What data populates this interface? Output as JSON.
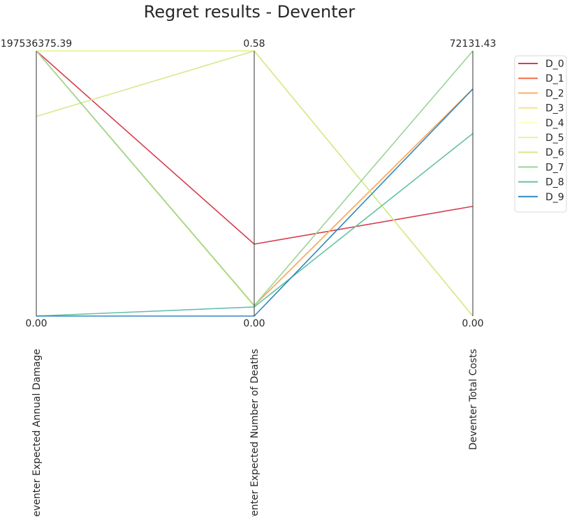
{
  "chart_data": {
    "type": "parallel-coordinates",
    "title": "Regret results - Deventer",
    "axes": [
      {
        "name": "Deventer Expected Annual Damage",
        "min": 0,
        "max": 197536375.39,
        "min_label": "0.00",
        "max_label": "197536375.39"
      },
      {
        "name": "Deventer Expected Number of Deaths",
        "min": 0,
        "max": 0.58,
        "min_label": "0.00",
        "max_label": "0.58"
      },
      {
        "name": "Deventer Total Costs",
        "min": 0,
        "max": 72131.43,
        "min_label": "0.00",
        "max_label": "72131.43"
      }
    ],
    "series": [
      {
        "name": "D_0",
        "color": "#d53e4f",
        "values": [
          197536375.39,
          0.1574,
          29853.0
        ]
      },
      {
        "name": "D_1",
        "color": "#f46d43",
        "values": [
          197536375.39,
          0.0229,
          61786.0
        ]
      },
      {
        "name": "D_2",
        "color": "#fdae61",
        "values": [
          197536375.39,
          0.0229,
          61786.0
        ]
      },
      {
        "name": "D_3",
        "color": "#fee08b",
        "values": [
          197536375.39,
          0.58,
          0.0
        ]
      },
      {
        "name": "D_4",
        "color": "#ffffbf",
        "values": [
          197536375.39,
          0.0199,
          49668.0
        ]
      },
      {
        "name": "D_5",
        "color": "#e6f598",
        "values": [
          197536375.39,
          0.58,
          0.0
        ]
      },
      {
        "name": "D_6",
        "color": "#d4ea8c",
        "values": [
          148731000.0,
          0.58,
          0.0
        ]
      },
      {
        "name": "D_7",
        "color": "#99d594",
        "values": [
          197536375.39,
          0.0229,
          72131.43
        ]
      },
      {
        "name": "D_8",
        "color": "#66c2a5",
        "values": [
          0.0,
          0.0199,
          49668.0
        ]
      },
      {
        "name": "D_9",
        "color": "#3288bd",
        "values": [
          0.0,
          0.0,
          61786.0
        ]
      }
    ],
    "legend_position": "upper right, outside plot",
    "grid": false
  }
}
